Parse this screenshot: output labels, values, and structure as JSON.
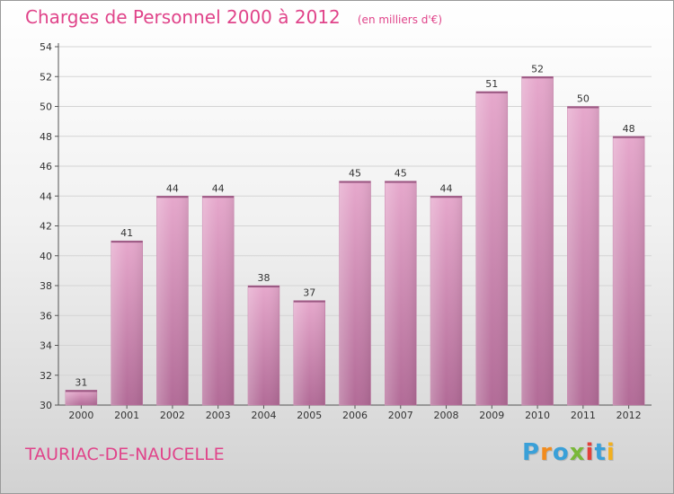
{
  "chart_data": {
    "type": "bar",
    "title": "Charges de Personnel 2000 à 2012",
    "subtitle": "(en milliers d'€)",
    "categories": [
      "2000",
      "2001",
      "2002",
      "2003",
      "2004",
      "2005",
      "2006",
      "2007",
      "2008",
      "2009",
      "2010",
      "2011",
      "2012"
    ],
    "values": [
      31,
      41,
      44,
      44,
      38,
      37,
      45,
      45,
      44,
      51,
      52,
      50,
      48
    ],
    "ylim": [
      30,
      54
    ],
    "yticks": [
      30,
      32,
      34,
      36,
      38,
      40,
      42,
      44,
      46,
      48,
      50,
      52,
      54
    ],
    "grid": true,
    "bar_color": "#d98fb8"
  },
  "commune": "TAURIAC-DE-NAUCELLE",
  "brand": {
    "letters": [
      "P",
      "r",
      "o",
      "x",
      "i",
      "t",
      "i"
    ],
    "colors": [
      "#3aa0d8",
      "#f28c1e",
      "#3aa0d8",
      "#7ab83a",
      "#e2403a",
      "#3aa0d8",
      "#f2b01e"
    ]
  }
}
